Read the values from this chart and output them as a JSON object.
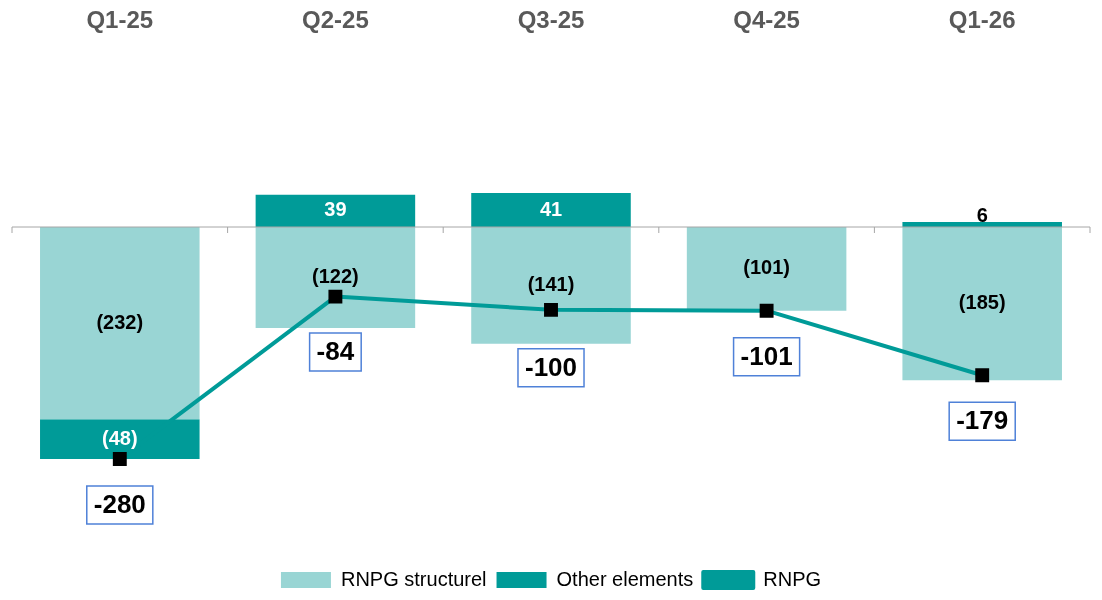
{
  "chart_data": {
    "type": "bar",
    "stacked": true,
    "categories": [
      "Q1-25",
      "Q2-25",
      "Q3-25",
      "Q4-25",
      "Q1-26"
    ],
    "legend": "bottom",
    "marker": "square",
    "series": [
      {
        "name": "RNPG structurel",
        "color": "#99d5d4",
        "values": [
          -232,
          -122,
          -141,
          -101,
          -185
        ],
        "value_labels": [
          "(232)",
          "(122)",
          "(141)",
          "(101)",
          "(185)"
        ]
      },
      {
        "name": "Other elements",
        "color": "#009b98",
        "values": [
          -48,
          39,
          41,
          null,
          6
        ],
        "value_labels": [
          "(48)",
          "39",
          "41",
          null,
          "6"
        ]
      },
      {
        "name": "RNPG",
        "type": "line",
        "color": "#009b98",
        "values": [
          -280,
          -84,
          -100,
          -101,
          -179
        ],
        "value_labels": [
          "-280",
          "-84",
          "-100",
          "-101",
          "-179"
        ]
      }
    ]
  }
}
